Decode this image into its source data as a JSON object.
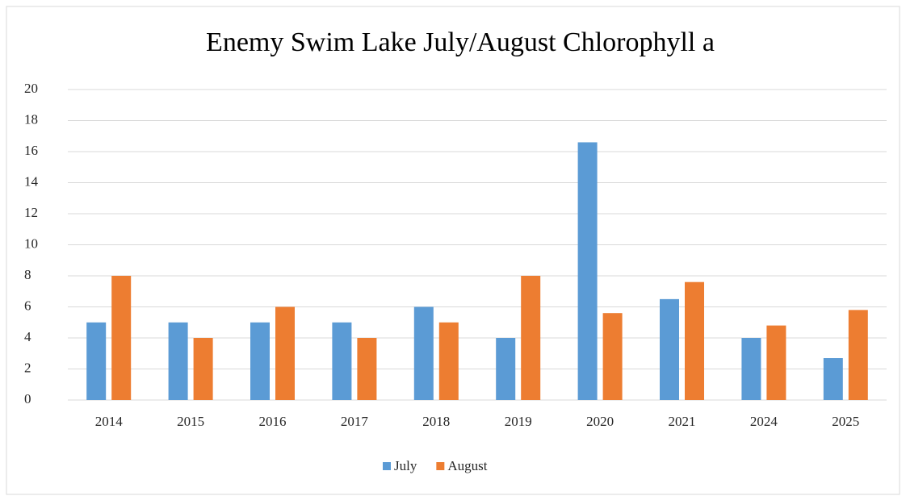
{
  "chart_data": {
    "type": "bar",
    "title": "Enemy Swim Lake July/August  Chlorophyll a",
    "categories": [
      "2014",
      "2015",
      "2016",
      "2017",
      "2018",
      "2019",
      "2020",
      "2021",
      "2024",
      "2025"
    ],
    "series": [
      {
        "name": "July",
        "color": "#5b9bd5",
        "values": [
          5,
          5,
          5,
          5,
          6,
          4,
          16.6,
          6.5,
          4,
          2.7
        ]
      },
      {
        "name": "August",
        "color": "#ed7d31",
        "values": [
          8,
          4,
          6,
          4,
          5,
          8,
          5.6,
          7.6,
          4.8,
          5.8
        ]
      }
    ],
    "ylim": [
      0,
      20
    ],
    "yticks": [
      0,
      2,
      4,
      6,
      8,
      10,
      12,
      14,
      16,
      18,
      20
    ],
    "grid": true,
    "legend": "bottom"
  }
}
